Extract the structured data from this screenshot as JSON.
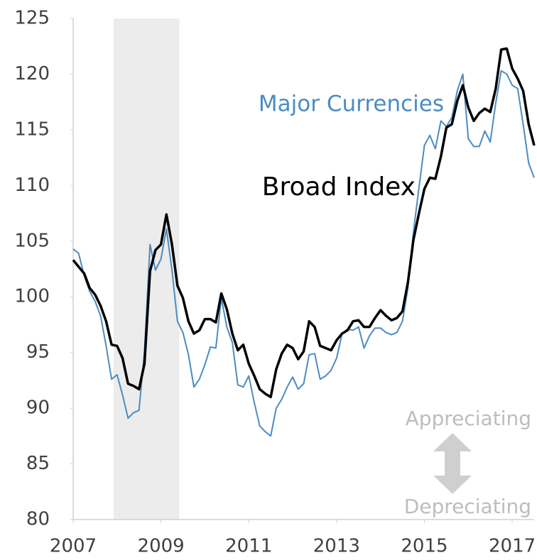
{
  "chart_data": {
    "type": "line",
    "xlim": [
      2007,
      2017.5
    ],
    "xticks": [
      2007,
      2009,
      2011,
      2013,
      2015,
      2017
    ],
    "ylim": [
      80,
      125
    ],
    "yticks": [
      80,
      85,
      90,
      95,
      100,
      105,
      110,
      115,
      120,
      125
    ],
    "shade": [
      2007.92,
      2009.42
    ],
    "annotations": {
      "up": "Appreciating",
      "down": "Depreciating"
    },
    "x": [
      2007,
      2007.125,
      2007.25,
      2007.375,
      2007.5,
      2007.625,
      2007.75,
      2007.875,
      2008,
      2008.125,
      2008.25,
      2008.375,
      2008.5,
      2008.625,
      2008.75,
      2008.875,
      2009,
      2009.125,
      2009.25,
      2009.375,
      2009.5,
      2009.625,
      2009.75,
      2009.875,
      2010,
      2010.125,
      2010.25,
      2010.375,
      2010.5,
      2010.625,
      2010.75,
      2010.875,
      2011,
      2011.125,
      2011.25,
      2011.375,
      2011.5,
      2011.625,
      2011.75,
      2011.875,
      2012,
      2012.125,
      2012.25,
      2012.375,
      2012.5,
      2012.625,
      2012.75,
      2012.875,
      2013,
      2013.125,
      2013.25,
      2013.375,
      2013.5,
      2013.625,
      2013.75,
      2013.875,
      2014,
      2014.125,
      2014.25,
      2014.375,
      2014.5,
      2014.625,
      2014.75,
      2014.875,
      2015,
      2015.125,
      2015.25,
      2015.375,
      2015.5,
      2015.625,
      2015.75,
      2015.875,
      2016,
      2016.125,
      2016.25,
      2016.375,
      2016.5,
      2016.625,
      2016.75,
      2016.875,
      2017,
      2017.125,
      2017.25,
      2017.375,
      2017.5
    ],
    "series": [
      {
        "name": "Major Currencies",
        "color": "#4a8cc2",
        "width": 2,
        "values": [
          104.3,
          103.9,
          101.9,
          100.5,
          99.6,
          98.3,
          95.6,
          92.6,
          93.0,
          91.2,
          89.1,
          89.6,
          89.8,
          95.1,
          104.7,
          102.4,
          103.4,
          106.1,
          102.4,
          97.8,
          96.8,
          94.8,
          91.9,
          92.6,
          93.9,
          95.5,
          95.4,
          99.9,
          97.3,
          95.9,
          92.1,
          91.9,
          92.9,
          90.5,
          88.4,
          87.9,
          87.5,
          90.0,
          90.8,
          91.9,
          92.8,
          91.7,
          92.2,
          94.8,
          94.9,
          92.6,
          92.9,
          93.4,
          94.5,
          96.7,
          97.1,
          97.0,
          97.3,
          95.4,
          96.5,
          97.2,
          97.2,
          96.8,
          96.6,
          96.8,
          97.8,
          100.8,
          105.8,
          109.8,
          113.6,
          114.5,
          113.3,
          115.8,
          115.3,
          116.1,
          118.5,
          120.0,
          114.2,
          113.5,
          113.5,
          114.9,
          113.9,
          117.4,
          120.3,
          120.0,
          119.0,
          118.7,
          115.5,
          112.0,
          110.7
        ]
      },
      {
        "name": "Broad Index",
        "color": "#000000",
        "width": 3.5,
        "values": [
          103.3,
          102.7,
          102.1,
          100.8,
          100.2,
          99.2,
          97.8,
          95.7,
          95.6,
          94.5,
          92.2,
          92.0,
          91.7,
          94.0,
          102.3,
          104.2,
          104.7,
          107.4,
          104.7,
          101.0,
          99.9,
          97.8,
          96.7,
          97.0,
          98.0,
          98.0,
          97.7,
          100.3,
          98.9,
          96.7,
          95.2,
          95.7,
          94.0,
          92.9,
          91.7,
          91.3,
          91.0,
          93.5,
          94.9,
          95.7,
          95.4,
          94.4,
          95.1,
          97.8,
          97.3,
          95.6,
          95.4,
          95.2,
          96.1,
          96.7,
          97.0,
          97.8,
          97.9,
          97.3,
          97.3,
          98.1,
          98.8,
          98.3,
          97.9,
          98.1,
          98.7,
          101.3,
          105.1,
          107.5,
          109.7,
          110.7,
          110.6,
          112.6,
          115.2,
          115.5,
          117.6,
          119.0,
          117.0,
          115.8,
          116.5,
          116.9,
          116.6,
          118.7,
          122.2,
          122.3,
          120.5,
          119.6,
          118.5,
          115.5,
          113.6
        ]
      }
    ]
  }
}
